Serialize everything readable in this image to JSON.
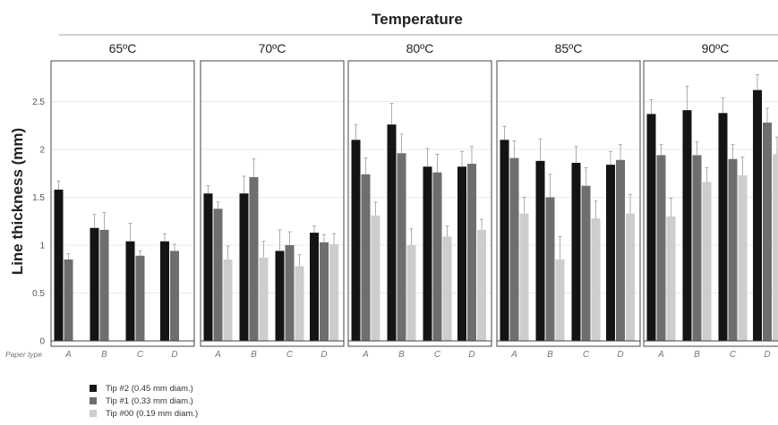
{
  "chart_data": {
    "type": "bar",
    "title": "Temperature",
    "ylabel": "Line thickness (mm)",
    "xlabel": "Paper type",
    "ylim": [
      0,
      2.9
    ],
    "yticks": [
      "0",
      "0.5",
      "1",
      "1.5",
      "2",
      "2.5"
    ],
    "categories": [
      "A",
      "B",
      "C",
      "D"
    ],
    "series": [
      {
        "name": "Tip #2  (0.45 mm diam.)",
        "color": "#141414"
      },
      {
        "name": "Tip #1  (0.33 mm diam.)",
        "color": "#6e6e6e"
      },
      {
        "name": "Tip #00  (0.19 mm diam.)",
        "color": "#cdcdcd"
      }
    ],
    "panels": [
      {
        "label": "65ºC",
        "values": [
          [
            1.58,
            0.85,
            null
          ],
          [
            1.18,
            1.16,
            null
          ],
          [
            1.04,
            0.89,
            null
          ],
          [
            1.04,
            0.94,
            null
          ]
        ],
        "errors": [
          [
            0.09,
            0.06,
            null
          ],
          [
            0.14,
            0.18,
            null
          ],
          [
            0.19,
            0.05,
            null
          ],
          [
            0.08,
            0.07,
            null
          ]
        ]
      },
      {
        "label": "70ºC",
        "values": [
          [
            1.54,
            1.38,
            0.85
          ],
          [
            1.54,
            1.71,
            0.87
          ],
          [
            0.94,
            1.0,
            0.78
          ],
          [
            1.13,
            1.03,
            1.01
          ]
        ],
        "errors": [
          [
            0.08,
            0.07,
            0.14
          ],
          [
            0.18,
            0.19,
            0.17
          ],
          [
            0.22,
            0.14,
            0.12
          ],
          [
            0.07,
            0.08,
            0.11
          ]
        ]
      },
      {
        "label": "80ºC",
        "values": [
          [
            2.1,
            1.74,
            1.31
          ],
          [
            2.26,
            1.96,
            1.0
          ],
          [
            1.82,
            1.76,
            1.09
          ],
          [
            1.82,
            1.85,
            1.16
          ]
        ],
        "errors": [
          [
            0.16,
            0.17,
            0.14
          ],
          [
            0.22,
            0.2,
            0.17
          ],
          [
            0.19,
            0.19,
            0.11
          ],
          [
            0.16,
            0.18,
            0.11
          ]
        ]
      },
      {
        "label": "85ºC",
        "values": [
          [
            2.1,
            1.91,
            1.33
          ],
          [
            1.88,
            1.5,
            0.85
          ],
          [
            1.86,
            1.62,
            1.28
          ],
          [
            1.84,
            1.89,
            1.33
          ]
        ],
        "errors": [
          [
            0.14,
            0.18,
            0.17
          ],
          [
            0.23,
            0.24,
            0.24
          ],
          [
            0.17,
            0.19,
            0.18
          ],
          [
            0.14,
            0.16,
            0.2
          ]
        ]
      },
      {
        "label": "90ºC",
        "values": [
          [
            2.37,
            1.94,
            1.3
          ],
          [
            2.41,
            1.94,
            1.66
          ],
          [
            2.38,
            1.9,
            1.73
          ],
          [
            2.62,
            2.28,
            1.95
          ]
        ],
        "errors": [
          [
            0.15,
            0.11,
            0.19
          ],
          [
            0.25,
            0.14,
            0.15
          ],
          [
            0.16,
            0.15,
            0.19
          ],
          [
            0.16,
            0.15,
            0.18
          ]
        ]
      }
    ],
    "legend_position": "bottom-left",
    "grid": true
  }
}
